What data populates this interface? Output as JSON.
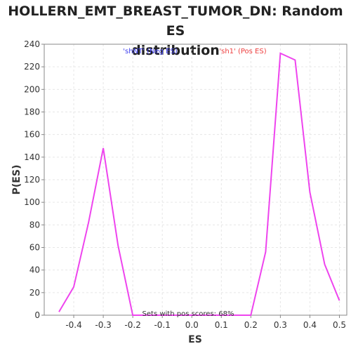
{
  "chart_data": {
    "type": "line",
    "title_line1": "HOLLERN_EMT_BREAST_TUMOR_DN: Random ES",
    "title_line2": "distribution",
    "xlabel": "ES",
    "ylabel": "P(ES)",
    "xlim": [
      -0.5,
      0.525
    ],
    "ylim": [
      0,
      240
    ],
    "xticks": [
      -0.4,
      -0.3,
      -0.2,
      -0.1,
      0.0,
      0.1,
      0.2,
      0.3,
      0.4,
      0.5
    ],
    "xtick_labels": [
      "-0.4",
      "-0.3",
      "-0.2",
      "-0.1",
      "0.0",
      "0.1",
      "0.2",
      "0.3",
      "0.4",
      "0.5"
    ],
    "yticks": [
      0,
      20,
      40,
      60,
      80,
      100,
      120,
      140,
      160,
      180,
      200,
      220,
      240
    ],
    "ytick_labels": [
      "0",
      "20",
      "40",
      "60",
      "80",
      "100",
      "120",
      "140",
      "160",
      "180",
      "200",
      "220",
      "240"
    ],
    "grid": true,
    "series": [
      {
        "color": "#ee44ee",
        "x": [
          -0.45,
          -0.4,
          -0.35,
          -0.3,
          -0.25,
          -0.2,
          -0.15,
          -0.1,
          -0.05,
          0.0,
          0.05,
          0.1,
          0.15,
          0.2,
          0.25,
          0.3,
          0.35,
          0.4,
          0.45,
          0.5
        ],
        "y": [
          3,
          25,
          82,
          148,
          62,
          0,
          0,
          0,
          0,
          0,
          0,
          0,
          0,
          0,
          56,
          232,
          226,
          109,
          45,
          13
        ]
      }
    ],
    "annotations": {
      "neg_label": "'shNT' (Neg ES)",
      "neg_color": "#4040ee",
      "pos_label": "'sh1' (Pos ES)",
      "pos_color": "#ee4040",
      "footer": "Sets with pos scores: 68%"
    }
  }
}
